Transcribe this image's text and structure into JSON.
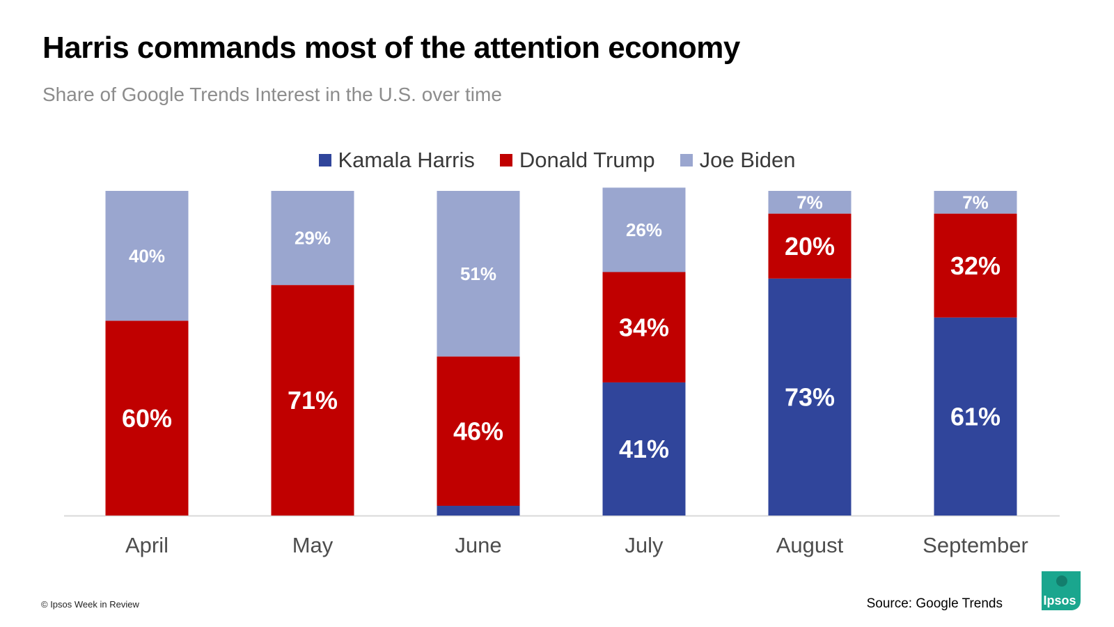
{
  "title": "Harris commands most of the attention economy",
  "subtitle": "Share of Google Trends Interest in the U.S. over time",
  "footer": {
    "copyright": "© Ipsos Week in Review",
    "source": "Source: Google Trends",
    "logo_text": "Ipsos"
  },
  "colors": {
    "harris": "#30459b",
    "trump": "#c00000",
    "biden": "#9aa6cf",
    "logo": "#1aa68e"
  },
  "chart_data": {
    "type": "bar",
    "stacked": true,
    "title": "Harris commands most of the attention economy",
    "subtitle": "Share of Google Trends Interest in the U.S. over time",
    "categories": [
      "April",
      "May",
      "June",
      "July",
      "August",
      "September"
    ],
    "series": [
      {
        "name": "Kamala Harris",
        "values": [
          0,
          0,
          3,
          41,
          73,
          61
        ],
        "labels": [
          "",
          "",
          "",
          "41%",
          "73%",
          "61%"
        ]
      },
      {
        "name": "Donald Trump",
        "values": [
          60,
          71,
          46,
          34,
          20,
          32
        ],
        "labels": [
          "60%",
          "71%",
          "46%",
          "34%",
          "20%",
          "32%"
        ]
      },
      {
        "name": "Joe Biden",
        "values": [
          40,
          29,
          51,
          26,
          7,
          7
        ],
        "labels": [
          "40%",
          "29%",
          "51%",
          "26%",
          "7%",
          "7%"
        ]
      }
    ],
    "ylim": [
      0,
      100
    ],
    "grid": false,
    "legend_position": "top-center"
  }
}
